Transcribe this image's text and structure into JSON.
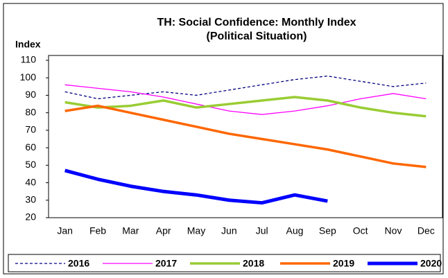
{
  "chart_data": {
    "type": "line",
    "title": "TH: Social Confidence: Monthly Index",
    "subtitle": "(Political Situation)",
    "y_label": "Index",
    "categories": [
      "Jan",
      "Feb",
      "Mar",
      "Apr",
      "May",
      "Jun",
      "Jul",
      "Aug",
      "Sep",
      "Oct",
      "Nov",
      "Dec"
    ],
    "series": [
      {
        "name": "2016",
        "color": "#000080",
        "dashed": true,
        "width": 1.3,
        "values": [
          92,
          88,
          90,
          92,
          90,
          93,
          96,
          99,
          101,
          98,
          95,
          97
        ]
      },
      {
        "name": "2017",
        "color": "#ff00ff",
        "width": 1.3,
        "values": [
          96,
          94,
          92,
          89,
          85,
          81,
          79,
          81,
          84,
          88,
          91,
          88
        ]
      },
      {
        "name": "2018",
        "color": "#99cc33",
        "width": 3.5,
        "values": [
          86,
          83,
          84,
          87,
          83,
          85,
          87,
          89,
          87,
          83,
          80,
          78
        ]
      },
      {
        "name": "2019",
        "color": "#ff6600",
        "width": 3.5,
        "values": [
          81,
          84,
          80,
          76,
          72,
          68,
          65,
          62,
          59,
          55,
          51,
          49
        ]
      },
      {
        "name": "2020",
        "color": "#0000ff",
        "width": 5,
        "values": [
          47,
          42,
          38,
          35,
          33,
          30,
          28.5,
          33,
          29.5,
          null,
          null,
          null
        ]
      }
    ],
    "ylim": [
      20,
      110
    ],
    "yticks": [
      20,
      30,
      40,
      50,
      60,
      70,
      80,
      90,
      100,
      110
    ]
  }
}
